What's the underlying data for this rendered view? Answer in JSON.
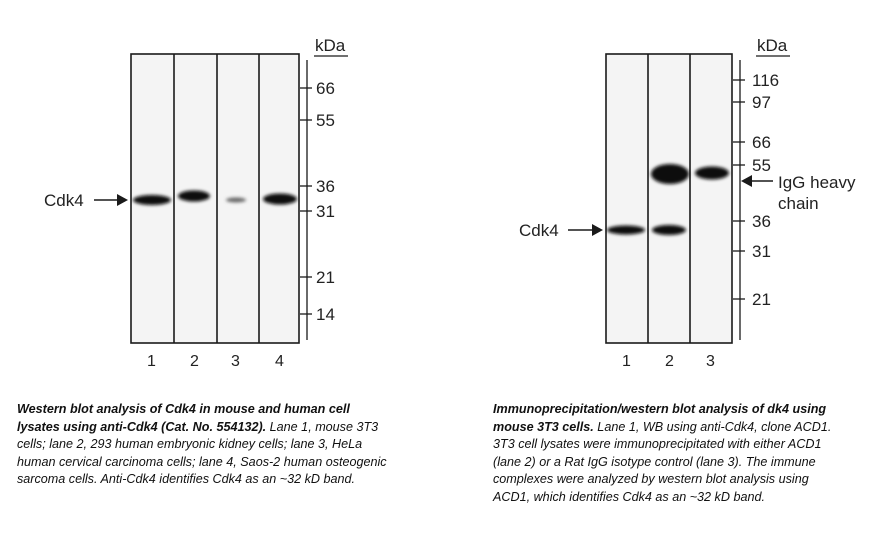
{
  "left_figure": {
    "kda_label": "kDa",
    "mw_markers": [
      "66",
      "55",
      "36",
      "31",
      "21",
      "14"
    ],
    "lane_labels": [
      "1",
      "2",
      "3",
      "4"
    ],
    "protein_label": "Cdk4",
    "caption_bold": "Western blot analysis of Cdk4 in mouse and human cell lysates using anti-Cdk4 (Cat. No. 554132).",
    "caption_rest": " Lane 1, mouse 3T3 cells; lane 2, 293 human embryonic kidney cells; lane 3, HeLa human cervical carcinoma cells; lane 4, Saos-2 human osteogenic sarcoma cells. Anti-Cdk4 identifies Cdk4 as an ~32 kD band."
  },
  "right_figure": {
    "kda_label": "kDa",
    "mw_markers": [
      "116",
      "97",
      "66",
      "55",
      "36",
      "31",
      "21"
    ],
    "lane_labels": [
      "1",
      "2",
      "3"
    ],
    "protein_label": "Cdk4",
    "igg_label_line1": "IgG heavy",
    "igg_label_line2": "chain",
    "caption_bold": "Immunoprecipitation/western blot analysis of  dk4 using mouse 3T3 cells.",
    "caption_rest": " Lane 1, WB using anti-Cdk4, clone ACD1. 3T3 cell lysates were immunoprecipitated with either ACD1 (lane 2) or a Rat IgG isotype control (lane 3). The immune complexes were analyzed by western blot analysis using ACD1, which identifies Cdk4 as an ~32 kD band."
  },
  "colors": {
    "background": "#ffffff",
    "blot_background": "#f4f4f4",
    "band": "#0a0a0a",
    "text": "#111111"
  }
}
